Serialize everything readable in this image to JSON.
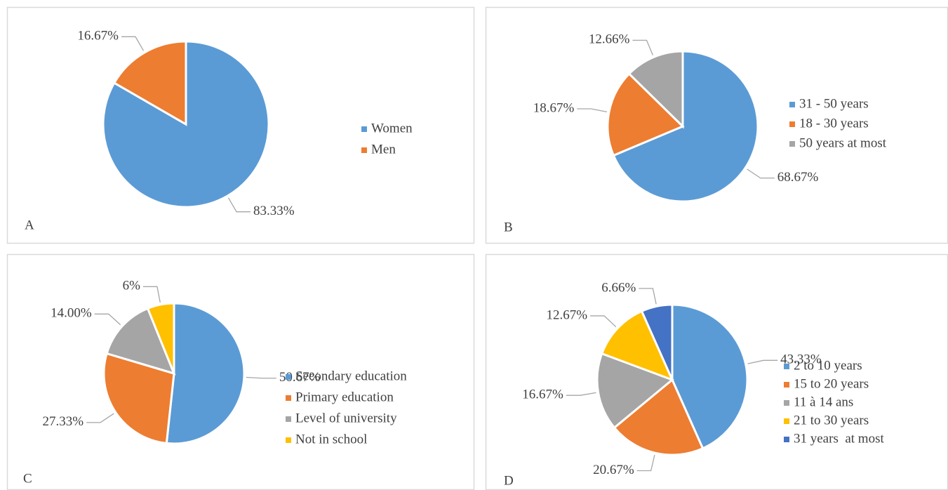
{
  "chart_data": [
    {
      "type": "pie",
      "panel_label": "A",
      "categories": [
        "Women",
        "Men"
      ],
      "values": [
        83.33,
        16.67
      ],
      "value_labels": [
        "83.33%",
        "16.67%"
      ],
      "colors": [
        "#5b9bd5",
        "#ed7d31"
      ]
    },
    {
      "type": "pie",
      "panel_label": "B",
      "categories": [
        "31 - 50 years",
        "18 - 30 years",
        "50 years at most"
      ],
      "values": [
        68.67,
        18.67,
        12.66
      ],
      "value_labels": [
        "68.67%",
        "18.67%",
        "12.66%"
      ],
      "colors": [
        "#5b9bd5",
        "#ed7d31",
        "#a5a5a5"
      ]
    },
    {
      "type": "pie",
      "panel_label": "C",
      "categories": [
        "Secondary education",
        "Primary education",
        "Level of university",
        "Not in school"
      ],
      "values": [
        50.67,
        27.33,
        14.0,
        6
      ],
      "value_labels": [
        "50.67%",
        "27.33%",
        "14.00%",
        "6%"
      ],
      "colors": [
        "#5b9bd5",
        "#ed7d31",
        "#a5a5a5",
        "#ffc000"
      ]
    },
    {
      "type": "pie",
      "panel_label": "D",
      "categories": [
        "2 to 10 years",
        "15 to 20 years",
        "11 à 14 ans",
        "21 to 30 years",
        "31 years  at most"
      ],
      "values": [
        43.33,
        20.67,
        16.67,
        12.67,
        6.66
      ],
      "value_labels": [
        "43.33%",
        "20.67%",
        "16.67%",
        "12.67%",
        "6.66%"
      ],
      "colors": [
        "#5b9bd5",
        "#ed7d31",
        "#a5a5a5",
        "#ffc000",
        "#4472c4"
      ]
    }
  ]
}
